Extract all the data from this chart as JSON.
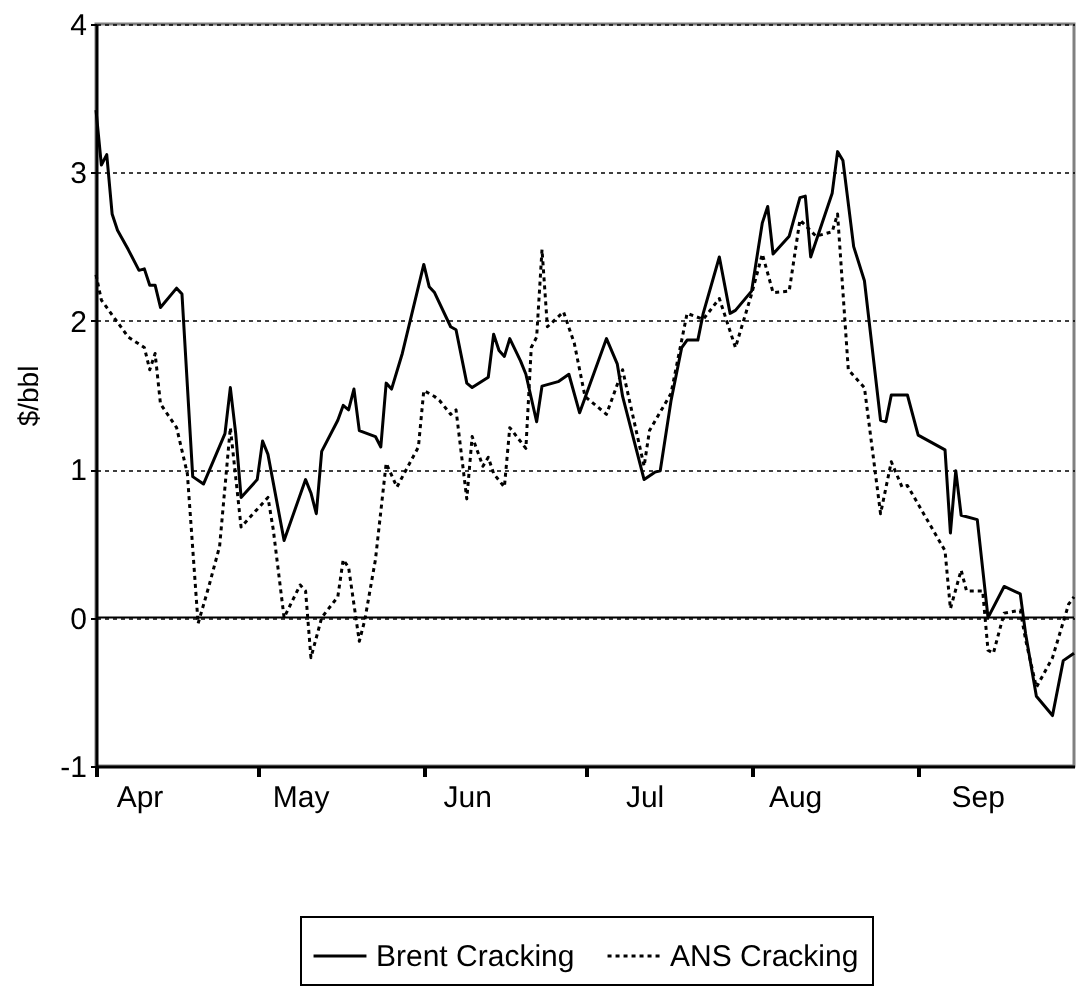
{
  "chart_data": {
    "type": "line",
    "ylabel": "$/bbl",
    "xlim": [
      "--04-01",
      "--09-30"
    ],
    "xticks": [
      {
        "value": "--04-01",
        "label": null
      },
      {
        "value": "--04-09",
        "label": "Apr"
      },
      {
        "value": "--05-01",
        "label": null
      },
      {
        "value": "--05-09",
        "label": "May"
      },
      {
        "value": "--06-01",
        "label": null
      },
      {
        "value": "--06-09",
        "label": "Jun"
      },
      {
        "value": "--07-01",
        "label": null
      },
      {
        "value": "--07-12",
        "label": "Jul"
      },
      {
        "value": "--08-01",
        "label": null
      },
      {
        "value": "--08-09",
        "label": "Aug"
      },
      {
        "value": "--09-01",
        "label": null
      },
      {
        "value": "--09-12",
        "label": "Sep"
      }
    ],
    "ylim": [
      -1,
      4
    ],
    "yticks": [
      -1,
      0,
      1,
      2,
      3,
      4
    ],
    "grid": "y",
    "legend": "bottom",
    "ref_lines": [
      {
        "axis": "y",
        "value": 0,
        "color": "#000000",
        "line_style": "solid"
      }
    ],
    "series": [
      {
        "name": "Brent Cracking",
        "color": "#000000",
        "line_style": "solid",
        "x": [
          "--04-01",
          "--04-02",
          "--04-03",
          "--04-04",
          "--04-05",
          "--04-07",
          "--04-09",
          "--04-10",
          "--04-11",
          "--04-12",
          "--04-13",
          "--04-16",
          "--04-17",
          "--04-19",
          "--04-21",
          "--04-25",
          "--04-26",
          "--04-27",
          "--04-28",
          "--05-01",
          "--05-02",
          "--05-03",
          "--05-06",
          "--05-10",
          "--05-11",
          "--05-12",
          "--05-13",
          "--05-16",
          "--05-17",
          "--05-18",
          "--05-19",
          "--05-20",
          "--05-23",
          "--05-24",
          "--05-25",
          "--05-26",
          "--05-28",
          "--06-01",
          "--06-02",
          "--06-03",
          "--06-06",
          "--06-07",
          "--06-09",
          "--06-10",
          "--06-13",
          "--06-14",
          "--06-15",
          "--06-16",
          "--06-17",
          "--06-19",
          "--06-20",
          "--06-22",
          "--06-23",
          "--06-26",
          "--06-28",
          "--06-30",
          "--07-05",
          "--07-07",
          "--07-08",
          "--07-12",
          "--07-14",
          "--07-15",
          "--07-17",
          "--07-19",
          "--07-20",
          "--07-22",
          "--07-23",
          "--07-26",
          "--07-28",
          "--07-29",
          "--08-01",
          "--08-03",
          "--08-04",
          "--08-05",
          "--08-08",
          "--08-10",
          "--08-11",
          "--08-12",
          "--08-16",
          "--08-17",
          "--08-18",
          "--08-20",
          "--08-22",
          "--08-25",
          "--08-26",
          "--08-27",
          "--08-30",
          "--09-01",
          "--09-06",
          "--09-07",
          "--09-08",
          "--09-09",
          "--09-12",
          "--09-14",
          "--09-17",
          "--09-20",
          "--09-21",
          "--09-23",
          "--09-26",
          "--09-28",
          "--09-30"
        ],
        "values": [
          3.42,
          3.05,
          3.12,
          2.72,
          2.61,
          2.48,
          2.34,
          2.35,
          2.24,
          2.24,
          2.09,
          2.22,
          2.18,
          0.95,
          0.9,
          1.24,
          1.55,
          1.24,
          0.81,
          0.93,
          1.19,
          1.1,
          0.52,
          0.93,
          0.84,
          0.7,
          1.12,
          1.33,
          1.43,
          1.4,
          1.54,
          1.26,
          1.22,
          1.15,
          1.58,
          1.54,
          1.78,
          2.38,
          2.23,
          2.19,
          1.96,
          1.94,
          1.58,
          1.55,
          1.62,
          1.91,
          1.8,
          1.76,
          1.88,
          1.73,
          1.64,
          1.32,
          1.56,
          1.59,
          1.64,
          1.38,
          1.88,
          1.71,
          1.49,
          0.93,
          0.98,
          0.99,
          1.46,
          1.82,
          1.87,
          1.87,
          2.05,
          2.43,
          2.05,
          2.07,
          2.2,
          2.66,
          2.77,
          2.45,
          2.57,
          2.83,
          2.84,
          2.43,
          2.86,
          3.14,
          3.08,
          2.5,
          2.27,
          1.33,
          1.32,
          1.5,
          1.5,
          1.23,
          1.13,
          0.57,
          0.99,
          0.69,
          0.66,
          0.0,
          0.21,
          0.16,
          -0.11,
          -0.53,
          -0.66,
          -0.29,
          -0.24
        ]
      },
      {
        "name": "ANS Cracking",
        "color": "#000000",
        "line_style": "dotted",
        "x": [
          "--04-01",
          "--04-02",
          "--04-03",
          "--04-07",
          "--04-10",
          "--04-11",
          "--04-12",
          "--04-13",
          "--04-16",
          "--04-18",
          "--04-20",
          "--04-22",
          "--04-24",
          "--04-26",
          "--04-28",
          "--05-03",
          "--05-04",
          "--05-06",
          "--05-09",
          "--05-10",
          "--05-11",
          "--05-13",
          "--05-16",
          "--05-17",
          "--05-18",
          "--05-20",
          "--05-21",
          "--05-23",
          "--05-25",
          "--05-27",
          "--05-31",
          "--06-01",
          "--06-03",
          "--06-04",
          "--06-06",
          "--06-07",
          "--06-09",
          "--06-10",
          "--06-12",
          "--06-13",
          "--06-14",
          "--06-16",
          "--06-17",
          "--06-20",
          "--06-21",
          "--06-22",
          "--06-23",
          "--06-24",
          "--06-27",
          "--06-29",
          "--07-01",
          "--07-05",
          "--07-08",
          "--07-12",
          "--07-13",
          "--07-17",
          "--07-20",
          "--07-23",
          "--07-26",
          "--07-29",
          "--08-01",
          "--08-03",
          "--08-05",
          "--08-08",
          "--08-10",
          "--08-13",
          "--08-16",
          "--08-17",
          "--08-19",
          "--08-22",
          "--08-25",
          "--08-27",
          "--08-29",
          "--08-30",
          "--09-06",
          "--09-07",
          "--09-09",
          "--09-10",
          "--09-13",
          "--09-14",
          "--09-15",
          "--09-17",
          "--09-20",
          "--09-21",
          "--09-23",
          "--09-26",
          "--09-29",
          "--09-30"
        ],
        "values": [
          2.31,
          2.14,
          2.09,
          1.89,
          1.82,
          1.67,
          1.78,
          1.44,
          1.28,
          0.97,
          -0.04,
          0.21,
          0.48,
          1.28,
          0.61,
          0.81,
          0.59,
          0.0,
          0.22,
          0.18,
          -0.27,
          0.0,
          0.14,
          0.39,
          0.34,
          -0.16,
          -0.02,
          0.39,
          1.04,
          0.88,
          1.15,
          1.53,
          1.49,
          1.46,
          1.37,
          1.4,
          0.8,
          1.22,
          1.02,
          1.08,
          0.97,
          0.88,
          1.28,
          1.14,
          1.82,
          1.89,
          2.48,
          1.96,
          2.06,
          1.85,
          1.49,
          1.37,
          1.67,
          1.02,
          1.26,
          1.51,
          2.05,
          2.01,
          2.15,
          1.82,
          2.18,
          2.45,
          2.19,
          2.2,
          2.68,
          2.57,
          2.6,
          2.72,
          1.67,
          1.55,
          0.7,
          1.05,
          0.88,
          0.89,
          0.45,
          0.06,
          0.32,
          0.18,
          0.18,
          -0.22,
          -0.24,
          0.03,
          0.05,
          -0.15,
          -0.47,
          -0.27,
          0.09,
          0.14
        ]
      }
    ]
  }
}
